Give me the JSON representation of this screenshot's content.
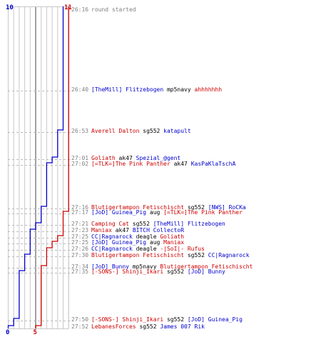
{
  "chart_data": {
    "type": "line",
    "top_labels": {
      "blue": "10",
      "red": "11"
    },
    "bottom_labels": {
      "blue": "0",
      "red": "5"
    },
    "colors": {
      "blue": "#0000cc",
      "red": "#cc0000",
      "time": "#808080",
      "axis": "#808080",
      "grid": "#c8c8c8"
    },
    "x_range": [
      0,
      11
    ],
    "events": [
      {
        "time": "26:16",
        "parts": [
          {
            "t": "round started",
            "c": "gray"
          }
        ]
      },
      {
        "time": "26:40",
        "parts": [
          {
            "t": "[TheMill] Flitzebogen",
            "c": "blue"
          },
          {
            "t": " mp5navy ",
            "c": "black"
          },
          {
            "t": "ahhhhhhh",
            "c": "red"
          }
        ]
      },
      {
        "time": "26:53",
        "parts": [
          {
            "t": "Averell Dalton",
            "c": "red"
          },
          {
            "t": " sg552 ",
            "c": "black"
          },
          {
            "t": "katapult",
            "c": "blue"
          }
        ]
      },
      {
        "time": "27:01",
        "parts": [
          {
            "t": "Goliath",
            "c": "red"
          },
          {
            "t": " ak47 ",
            "c": "black"
          },
          {
            "t": "Spezial_@gent",
            "c": "blue"
          }
        ]
      },
      {
        "time": "27:02",
        "parts": [
          {
            "t": "[=TLK=]The Pink Panther",
            "c": "red"
          },
          {
            "t": " ak47 ",
            "c": "black"
          },
          {
            "t": "KasPaKlaTschA",
            "c": "blue"
          }
        ]
      },
      {
        "time": "27:16",
        "parts": [
          {
            "t": "Blutigertampon Fetischischt",
            "c": "red"
          },
          {
            "t": " sg552 ",
            "c": "black"
          },
          {
            "t": "[NWS] RoCKa",
            "c": "blue"
          }
        ]
      },
      {
        "time": "27:17",
        "parts": [
          {
            "t": "[JoD] Guinea_Pig",
            "c": "blue"
          },
          {
            "t": " aug ",
            "c": "black"
          },
          {
            "t": "[=TLK=]The Pink Panther",
            "c": "red"
          }
        ]
      },
      {
        "time": "27:21",
        "parts": [
          {
            "t": "Camping Cat",
            "c": "red"
          },
          {
            "t": " sg552 ",
            "c": "black"
          },
          {
            "t": "[TheMill] Flitzebogen",
            "c": "blue"
          }
        ]
      },
      {
        "time": "27:23",
        "parts": [
          {
            "t": "Maniax",
            "c": "red"
          },
          {
            "t": " ak47 ",
            "c": "black"
          },
          {
            "t": "BITCH CollectoR",
            "c": "blue"
          }
        ]
      },
      {
        "time": "27:25",
        "parts": [
          {
            "t": "CC|Ragnarock",
            "c": "blue"
          },
          {
            "t": " deagle ",
            "c": "black"
          },
          {
            "t": "Goliath",
            "c": "red"
          }
        ]
      },
      {
        "time": "27:25",
        "parts": [
          {
            "t": "[JoD] Guinea_Pig",
            "c": "blue"
          },
          {
            "t": " aug ",
            "c": "black"
          },
          {
            "t": "Maniax",
            "c": "red"
          }
        ]
      },
      {
        "time": "27:26",
        "parts": [
          {
            "t": "CC|Ragnarock",
            "c": "blue"
          },
          {
            "t": " deagle ",
            "c": "black"
          },
          {
            "t": "-|SoI|- Rufus",
            "c": "red"
          }
        ]
      },
      {
        "time": "27:30",
        "parts": [
          {
            "t": "Blutigertampon Fetischischt",
            "c": "red"
          },
          {
            "t": " sg552 ",
            "c": "black"
          },
          {
            "t": "CC|Ragnarock",
            "c": "blue"
          }
        ]
      },
      {
        "time": "27:34",
        "parts": [
          {
            "t": "[JoD] Bunny",
            "c": "blue"
          },
          {
            "t": " mp5navy ",
            "c": "black"
          },
          {
            "t": "Blutigertampon Fetischischt",
            "c": "red"
          }
        ]
      },
      {
        "time": "27:35",
        "parts": [
          {
            "t": "[-SONS-] Shinji_Ikari",
            "c": "red"
          },
          {
            "t": " sg552 ",
            "c": "black"
          },
          {
            "t": "[JoD] Bunny",
            "c": "blue"
          }
        ]
      },
      {
        "time": "27:50",
        "parts": [
          {
            "t": "[-SONS-] Shinji_Ikari",
            "c": "red"
          },
          {
            "t": " sg552 ",
            "c": "black"
          },
          {
            "t": "[JoD] Guinea_Pig",
            "c": "blue"
          }
        ]
      },
      {
        "time": "27:52",
        "parts": [
          {
            "t": "LebanesForces",
            "c": "red"
          },
          {
            "t": " sg552 ",
            "c": "black"
          },
          {
            "t": "James 007 Rik",
            "c": "blue"
          }
        ]
      }
    ],
    "series": [
      {
        "name": "blue",
        "values": [
          10,
          10,
          9,
          8,
          7,
          6,
          6,
          5,
          4,
          4,
          4,
          4,
          3,
          3,
          2,
          1,
          0
        ]
      },
      {
        "name": "red",
        "values": [
          11,
          11,
          11,
          11,
          11,
          11,
          10,
          10,
          10,
          9,
          8,
          7,
          7,
          6,
          6,
          6,
          5
        ]
      }
    ]
  }
}
